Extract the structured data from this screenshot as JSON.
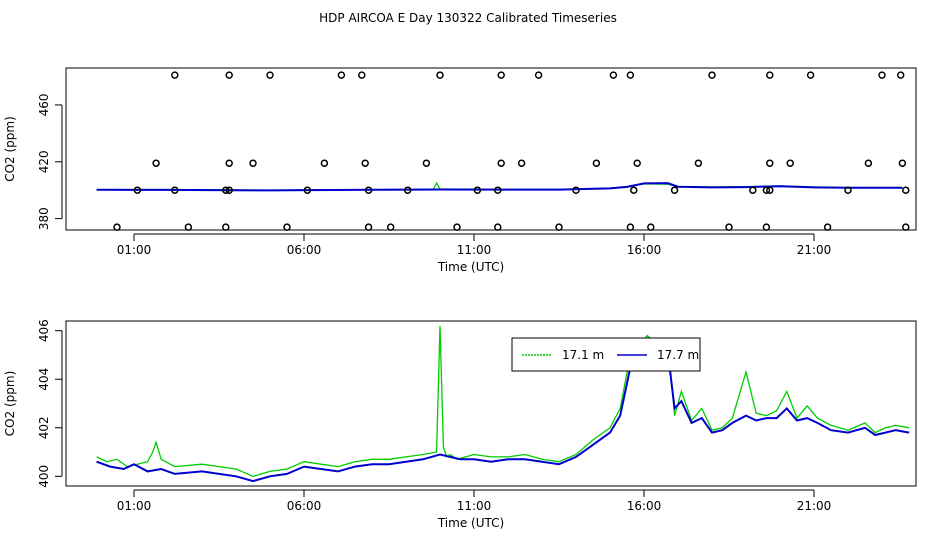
{
  "title": "HDP AIRCOA E  Day 130322  Calibrated Timeseries",
  "colors": {
    "green": "#00cc00",
    "blue": "#0000cc",
    "axis": "#000000"
  },
  "chart_data": [
    {
      "type": "scatter",
      "xlabel": "Time (UTC)",
      "ylabel": "CO2 (ppm)",
      "xlim": [
        -1.0,
        24.0
      ],
      "ylim": [
        372,
        486
      ],
      "x_ticks": [
        1,
        6,
        11,
        16,
        21
      ],
      "x_tick_labels": [
        "01:00",
        "06:00",
        "11:00",
        "16:00",
        "21:00"
      ],
      "y_ticks": [
        380,
        420,
        460
      ],
      "y_tick_labels": [
        "380",
        "420",
        "460"
      ],
      "points": [
        {
          "x": 1.1,
          "y": 400
        },
        {
          "x": 1.65,
          "y": 419
        },
        {
          "x": 2.2,
          "y": 481
        },
        {
          "x": 3.8,
          "y": 419
        },
        {
          "x": 3.8,
          "y": 481
        },
        {
          "x": 5.0,
          "y": 481
        },
        {
          "x": 7.1,
          "y": 481
        },
        {
          "x": 7.7,
          "y": 481
        },
        {
          "x": 7.8,
          "y": 419
        },
        {
          "x": 10.0,
          "y": 481
        },
        {
          "x": 11.8,
          "y": 481
        },
        {
          "x": 12.9,
          "y": 481
        },
        {
          "x": 15.1,
          "y": 481
        },
        {
          "x": 15.6,
          "y": 481
        },
        {
          "x": 18.0,
          "y": 481
        },
        {
          "x": 19.7,
          "y": 481
        },
        {
          "x": 20.9,
          "y": 481
        },
        {
          "x": 23.0,
          "y": 481
        },
        {
          "x": 23.55,
          "y": 481
        },
        {
          "x": 0.5,
          "y": 374
        },
        {
          "x": 2.6,
          "y": 374
        },
        {
          "x": 3.7,
          "y": 374
        },
        {
          "x": 5.5,
          "y": 374
        },
        {
          "x": 7.9,
          "y": 374
        },
        {
          "x": 8.55,
          "y": 374
        },
        {
          "x": 10.5,
          "y": 374
        },
        {
          "x": 11.7,
          "y": 374
        },
        {
          "x": 13.5,
          "y": 374
        },
        {
          "x": 15.6,
          "y": 374
        },
        {
          "x": 16.2,
          "y": 374
        },
        {
          "x": 18.5,
          "y": 374
        },
        {
          "x": 19.6,
          "y": 374
        },
        {
          "x": 21.4,
          "y": 374
        },
        {
          "x": 23.7,
          "y": 374
        },
        {
          "x": 4.5,
          "y": 419
        },
        {
          "x": 6.6,
          "y": 419
        },
        {
          "x": 9.6,
          "y": 419
        },
        {
          "x": 11.8,
          "y": 419
        },
        {
          "x": 12.4,
          "y": 419
        },
        {
          "x": 14.6,
          "y": 419
        },
        {
          "x": 15.8,
          "y": 419
        },
        {
          "x": 17.6,
          "y": 419
        },
        {
          "x": 19.7,
          "y": 419
        },
        {
          "x": 20.3,
          "y": 419
        },
        {
          "x": 22.6,
          "y": 419
        },
        {
          "x": 23.6,
          "y": 419
        },
        {
          "x": 2.2,
          "y": 400
        },
        {
          "x": 3.7,
          "y": 400
        },
        {
          "x": 3.8,
          "y": 400
        },
        {
          "x": 6.1,
          "y": 400
        },
        {
          "x": 7.9,
          "y": 400
        },
        {
          "x": 9.05,
          "y": 400
        },
        {
          "x": 11.1,
          "y": 400
        },
        {
          "x": 11.7,
          "y": 400
        },
        {
          "x": 14.0,
          "y": 400
        },
        {
          "x": 15.7,
          "y": 400
        },
        {
          "x": 16.9,
          "y": 400
        },
        {
          "x": 19.2,
          "y": 400
        },
        {
          "x": 19.6,
          "y": 400
        },
        {
          "x": 19.7,
          "y": 400
        },
        {
          "x": 22.0,
          "y": 400
        },
        {
          "x": 23.7,
          "y": 400
        }
      ],
      "series": [
        {
          "color": "#00cc00",
          "x": [
            -0.1,
            2,
            5,
            8,
            9.8,
            9.9,
            10,
            10.3,
            12,
            13.5,
            15,
            15.5,
            16,
            16.7,
            17,
            18,
            19,
            20,
            21,
            22,
            23.6
          ],
          "values": [
            400.4,
            400.5,
            400.1,
            400.4,
            400.6,
            405,
            400.9,
            400.7,
            400.5,
            400.5,
            401.5,
            402.5,
            404.5,
            404.2,
            402.5,
            402.3,
            402.5,
            403,
            402.3,
            401.9,
            401.8
          ]
        },
        {
          "color": "#0000cc",
          "x": [
            -0.1,
            2,
            5,
            8,
            10,
            12,
            13.5,
            15,
            15.5,
            16,
            16.7,
            17,
            18,
            19,
            20,
            21,
            22,
            23.6
          ],
          "values": [
            400.3,
            400.2,
            399.9,
            400.3,
            400.5,
            400.4,
            400.4,
            401.3,
            402.3,
            404.8,
            405,
            402.5,
            402,
            402.2,
            402.8,
            402,
            401.8,
            401.8
          ]
        }
      ]
    },
    {
      "type": "line",
      "xlabel": "Time (UTC)",
      "ylabel": "CO2 (ppm)",
      "xlim": [
        -1.0,
        24.0
      ],
      "ylim": [
        399.6,
        406.4
      ],
      "x_ticks": [
        1,
        6,
        11,
        16,
        21
      ],
      "x_tick_labels": [
        "01:00",
        "06:00",
        "11:00",
        "16:00",
        "21:00"
      ],
      "y_ticks": [
        400,
        402,
        404,
        406
      ],
      "y_tick_labels": [
        "400",
        "402",
        "404",
        "406"
      ],
      "legend_position": "top-center",
      "series": [
        {
          "name": "17.1 m",
          "color": "#00cc00",
          "x": [
            -0.1,
            0.2,
            0.5,
            0.8,
            1.1,
            1.4,
            1.55,
            1.65,
            1.8,
            2.2,
            3,
            3.5,
            4,
            4.5,
            5,
            5.5,
            6,
            6.5,
            7,
            7.5,
            8,
            8.5,
            9,
            9.5,
            9.9,
            10.0,
            10.1,
            10.2,
            10.3,
            10.5,
            11,
            11.5,
            12,
            12.5,
            13,
            13.5,
            14,
            14.5,
            15,
            15.3,
            15.6,
            15.9,
            16.1,
            16.4,
            16.7,
            16.9,
            17.1,
            17.4,
            17.7,
            18,
            18.3,
            18.6,
            19,
            19.3,
            19.6,
            19.9,
            20.2,
            20.5,
            20.8,
            21.1,
            21.5,
            22,
            22.5,
            22.8,
            23.1,
            23.4,
            23.8
          ],
          "values": [
            400.8,
            400.6,
            400.7,
            400.4,
            400.5,
            400.6,
            401.0,
            401.4,
            400.7,
            400.4,
            400.5,
            400.4,
            400.3,
            400.0,
            400.2,
            400.3,
            400.6,
            400.5,
            400.4,
            400.6,
            400.7,
            400.7,
            400.8,
            400.9,
            401.0,
            406.2,
            401.2,
            400.8,
            400.9,
            400.7,
            400.9,
            400.8,
            400.8,
            400.9,
            400.7,
            400.6,
            400.9,
            401.5,
            402.0,
            402.8,
            405.0,
            405.5,
            405.8,
            405.4,
            405.6,
            402.5,
            403.5,
            402.3,
            402.8,
            401.9,
            402.0,
            402.4,
            404.3,
            402.6,
            402.5,
            402.7,
            403.5,
            402.4,
            402.9,
            402.4,
            402.1,
            401.9,
            402.2,
            401.8,
            402.0,
            402.1,
            402.0
          ]
        },
        {
          "name": "17.7 m",
          "color": "#0000cc",
          "x": [
            -0.1,
            0.3,
            0.7,
            1.0,
            1.4,
            1.8,
            2.2,
            3,
            3.5,
            4,
            4.5,
            5,
            5.5,
            6,
            6.5,
            7,
            7.5,
            8,
            8.5,
            9,
            9.5,
            10,
            10.3,
            10.6,
            11,
            11.5,
            12,
            12.5,
            13,
            13.5,
            14,
            14.5,
            15,
            15.3,
            15.6,
            15.9,
            16.1,
            16.4,
            16.7,
            16.9,
            17.1,
            17.4,
            17.7,
            18,
            18.3,
            18.6,
            19,
            19.3,
            19.6,
            19.9,
            20.2,
            20.5,
            20.8,
            21.1,
            21.5,
            22,
            22.5,
            22.8,
            23.1,
            23.4,
            23.8
          ],
          "values": [
            400.6,
            400.4,
            400.3,
            400.5,
            400.2,
            400.3,
            400.1,
            400.2,
            400.1,
            400.0,
            399.8,
            400.0,
            400.1,
            400.4,
            400.3,
            400.2,
            400.4,
            400.5,
            400.5,
            400.6,
            400.7,
            400.9,
            400.8,
            400.7,
            400.7,
            400.6,
            400.7,
            400.7,
            400.6,
            400.5,
            400.8,
            401.3,
            401.8,
            402.5,
            404.5,
            405.2,
            405.3,
            405.0,
            405.1,
            402.8,
            403.1,
            402.2,
            402.4,
            401.8,
            401.9,
            402.2,
            402.5,
            402.3,
            402.4,
            402.4,
            402.8,
            402.3,
            402.4,
            402.2,
            401.9,
            401.8,
            402.0,
            401.7,
            401.8,
            401.9,
            401.8
          ]
        }
      ]
    }
  ]
}
